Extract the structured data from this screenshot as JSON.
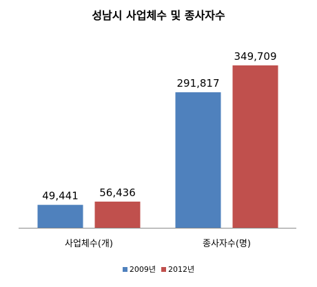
{
  "chart_data": {
    "type": "bar",
    "title": "성남시 사업체수 및 종사자수",
    "categories": [
      "사업체수(개)",
      "종사자수(명)"
    ],
    "series": [
      {
        "name": "2009년",
        "color": "#4f81bd",
        "values": [
          49441,
          291817
        ],
        "labels": [
          "49,441",
          "291,817"
        ]
      },
      {
        "name": "2012년",
        "color": "#c0504d",
        "values": [
          56436,
          349709
        ],
        "labels": [
          "56,436",
          "349,709"
        ]
      }
    ],
    "grid": false,
    "legend_position": "bottom"
  }
}
